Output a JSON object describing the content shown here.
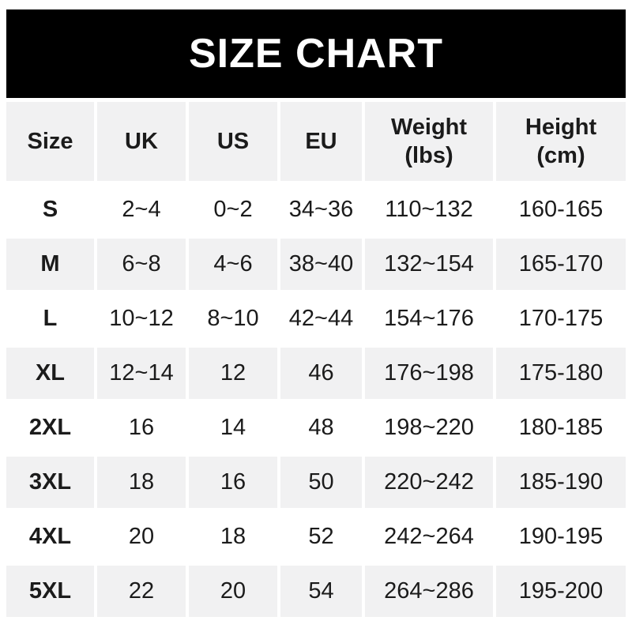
{
  "title": "SIZE CHART",
  "colors": {
    "banner_bg": "#000000",
    "banner_text": "#ffffff",
    "cell_gray": "#f1f1f2",
    "row_white": "#ffffff",
    "text": "#1b1b1b"
  },
  "chart_data": {
    "type": "table",
    "title": "SIZE CHART",
    "columns": [
      [
        "Size"
      ],
      [
        "UK"
      ],
      [
        "US"
      ],
      [
        "EU"
      ],
      [
        "Weight",
        "(lbs)"
      ],
      [
        "Height",
        "(cm)"
      ]
    ],
    "rows": [
      [
        "S",
        "2~4",
        "0~2",
        "34~36",
        "110~132",
        "160-165"
      ],
      [
        "M",
        "6~8",
        "4~6",
        "38~40",
        "132~154",
        "165-170"
      ],
      [
        "L",
        "10~12",
        "8~10",
        "42~44",
        "154~176",
        "170-175"
      ],
      [
        "XL",
        "12~14",
        "12",
        "46",
        "176~198",
        "175-180"
      ],
      [
        "2XL",
        "16",
        "14",
        "48",
        "198~220",
        "180-185"
      ],
      [
        "3XL",
        "18",
        "16",
        "50",
        "220~242",
        "185-190"
      ],
      [
        "4XL",
        "20",
        "18",
        "52",
        "242~264",
        "190-195"
      ],
      [
        "5XL",
        "22",
        "20",
        "54",
        "264~286",
        "195-200"
      ]
    ]
  }
}
